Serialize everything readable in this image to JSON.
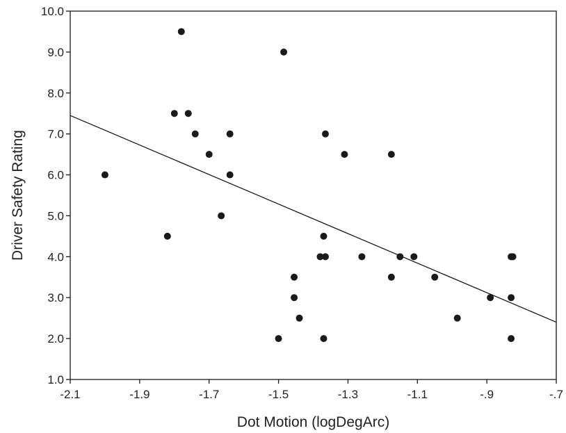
{
  "chart_data": {
    "type": "scatter",
    "title": "",
    "xlabel": "Dot Motion (logDegArc)",
    "ylabel": "Driver Safety Rating",
    "xlim": [
      -2.1,
      -0.7
    ],
    "ylim": [
      1.0,
      10.0
    ],
    "x_ticks": [
      -2.1,
      -1.9,
      -1.7,
      -1.5,
      -1.3,
      -1.1,
      -0.9,
      -0.7
    ],
    "x_tick_labels": [
      "-2.1",
      "-1.9",
      "-1.7",
      "-1.5",
      "-1.3",
      "-1.1",
      "-.9",
      "-.7"
    ],
    "y_ticks": [
      1.0,
      2.0,
      3.0,
      4.0,
      5.0,
      6.0,
      7.0,
      8.0,
      9.0,
      10.0
    ],
    "y_tick_labels": [
      "1.0",
      "2.0",
      "3.0",
      "4.0",
      "5.0",
      "6.0",
      "7.0",
      "8.0",
      "9.0",
      "10.0"
    ],
    "grid": false,
    "legend": "none",
    "marker_color": "#1a1a1a",
    "line_color": "#1a1a1a",
    "points": [
      {
        "x": -2.0,
        "y": 6.0
      },
      {
        "x": -1.82,
        "y": 4.5
      },
      {
        "x": -1.8,
        "y": 7.5
      },
      {
        "x": -1.78,
        "y": 9.5
      },
      {
        "x": -1.76,
        "y": 7.5
      },
      {
        "x": -1.74,
        "y": 7.0
      },
      {
        "x": -1.7,
        "y": 6.5
      },
      {
        "x": -1.665,
        "y": 5.0
      },
      {
        "x": -1.64,
        "y": 7.0
      },
      {
        "x": -1.64,
        "y": 6.0
      },
      {
        "x": -1.485,
        "y": 9.0
      },
      {
        "x": -1.5,
        "y": 2.0
      },
      {
        "x": -1.455,
        "y": 3.5
      },
      {
        "x": -1.455,
        "y": 3.0
      },
      {
        "x": -1.44,
        "y": 2.5
      },
      {
        "x": -1.38,
        "y": 4.0
      },
      {
        "x": -1.37,
        "y": 4.5
      },
      {
        "x": -1.365,
        "y": 4.0
      },
      {
        "x": -1.365,
        "y": 7.0
      },
      {
        "x": -1.37,
        "y": 2.0
      },
      {
        "x": -1.31,
        "y": 6.5
      },
      {
        "x": -1.26,
        "y": 4.0
      },
      {
        "x": -1.175,
        "y": 6.5
      },
      {
        "x": -1.175,
        "y": 3.5
      },
      {
        "x": -1.15,
        "y": 4.0
      },
      {
        "x": -1.11,
        "y": 4.0
      },
      {
        "x": -1.05,
        "y": 3.5
      },
      {
        "x": -0.985,
        "y": 2.5
      },
      {
        "x": -0.89,
        "y": 3.0
      },
      {
        "x": -0.83,
        "y": 4.0
      },
      {
        "x": -0.825,
        "y": 4.0
      },
      {
        "x": -0.83,
        "y": 3.0
      },
      {
        "x": -0.83,
        "y": 2.0
      }
    ],
    "trend_line": {
      "x": [
        -2.1,
        -0.7
      ],
      "y": [
        7.45,
        2.4
      ]
    }
  }
}
